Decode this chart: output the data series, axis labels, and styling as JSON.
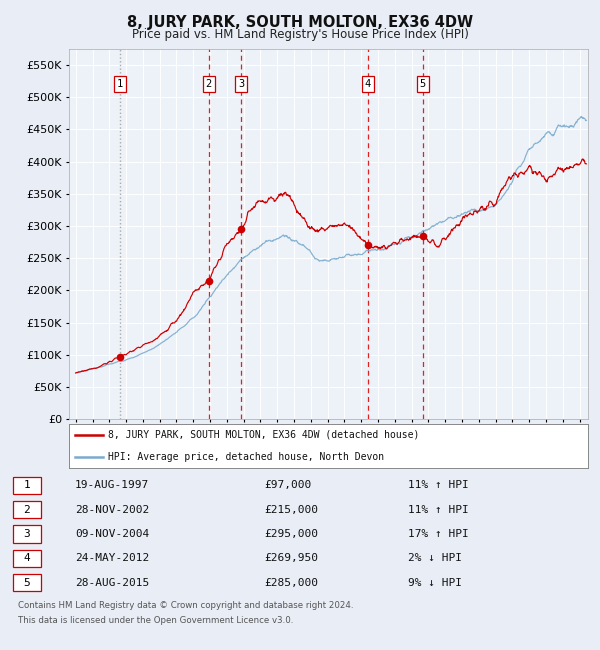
{
  "title": "8, JURY PARK, SOUTH MOLTON, EX36 4DW",
  "subtitle": "Price paid vs. HM Land Registry's House Price Index (HPI)",
  "ytick_values": [
    0,
    50000,
    100000,
    150000,
    200000,
    250000,
    300000,
    350000,
    400000,
    450000,
    500000,
    550000
  ],
  "xlim_start": 1994.6,
  "xlim_end": 2025.5,
  "ylim_min": 0,
  "ylim_max": 575000,
  "sales": [
    {
      "num": 1,
      "date_str": "19-AUG-1997",
      "date_dec": 1997.63,
      "price": 97000,
      "hpi_pct": "11% ↑ HPI"
    },
    {
      "num": 2,
      "date_str": "28-NOV-2002",
      "date_dec": 2002.91,
      "price": 215000,
      "hpi_pct": "11% ↑ HPI"
    },
    {
      "num": 3,
      "date_str": "09-NOV-2004",
      "date_dec": 2004.86,
      "price": 295000,
      "hpi_pct": "17% ↑ HPI"
    },
    {
      "num": 4,
      "date_str": "24-MAY-2012",
      "date_dec": 2012.4,
      "price": 269950,
      "hpi_pct": "2% ↓ HPI"
    },
    {
      "num": 5,
      "date_str": "28-AUG-2015",
      "date_dec": 2015.66,
      "price": 285000,
      "hpi_pct": "9% ↓ HPI"
    }
  ],
  "legend_label_red": "8, JURY PARK, SOUTH MOLTON, EX36 4DW (detached house)",
  "legend_label_blue": "HPI: Average price, detached house, North Devon",
  "footer_line1": "Contains HM Land Registry data © Crown copyright and database right 2024.",
  "footer_line2": "This data is licensed under the Open Government Licence v3.0.",
  "bg_color": "#e8edf6",
  "plot_bg_color": "#edf1f8",
  "red_line_color": "#cc0000",
  "blue_line_color": "#7aabcc",
  "grid_color": "#ffffff",
  "dashed_vline_color": "#dd2222",
  "dotted_vline_color": "#aaaaaa",
  "hpi_keypoints_t": [
    1995.0,
    1996.0,
    1997.0,
    1998.0,
    1999.0,
    2000.0,
    2001.0,
    2002.0,
    2003.0,
    2004.0,
    2005.0,
    2006.0,
    2007.5,
    2008.5,
    2009.5,
    2010.5,
    2011.0,
    2012.0,
    2013.0,
    2014.0,
    2015.0,
    2016.0,
    2017.0,
    2018.0,
    2019.0,
    2020.0,
    2021.0,
    2022.0,
    2023.0,
    2024.0,
    2025.3
  ],
  "hpi_keypoints_v": [
    72000,
    78000,
    85000,
    92000,
    102000,
    116000,
    135000,
    158000,
    190000,
    225000,
    250000,
    270000,
    285000,
    270000,
    245000,
    248000,
    252000,
    258000,
    263000,
    272000,
    283000,
    295000,
    310000,
    318000,
    325000,
    330000,
    370000,
    420000,
    440000,
    455000,
    465000
  ],
  "prop_keypoints_t": [
    1995.0,
    1996.0,
    1997.0,
    1997.63,
    1998.5,
    1999.5,
    2000.5,
    2001.5,
    2002.0,
    2002.91,
    2003.5,
    2004.0,
    2004.86,
    2005.5,
    2006.5,
    2007.5,
    2008.0,
    2008.5,
    2009.0,
    2009.5,
    2010.0,
    2010.5,
    2011.0,
    2011.5,
    2012.0,
    2012.4,
    2013.0,
    2013.5,
    2014.0,
    2014.5,
    2015.0,
    2015.66,
    2016.0,
    2016.5,
    2017.0,
    2017.5,
    2018.0,
    2019.0,
    2020.0,
    2021.0,
    2022.0,
    2023.0,
    2024.0,
    2025.3
  ],
  "prop_keypoints_v": [
    72000,
    78000,
    88000,
    97000,
    108000,
    120000,
    140000,
    170000,
    195000,
    215000,
    245000,
    270000,
    295000,
    330000,
    340000,
    350000,
    335000,
    310000,
    295000,
    290000,
    295000,
    300000,
    305000,
    295000,
    278000,
    269950,
    268000,
    265000,
    272000,
    278000,
    282000,
    285000,
    275000,
    270000,
    280000,
    295000,
    310000,
    325000,
    340000,
    380000,
    390000,
    370000,
    390000,
    400000
  ]
}
